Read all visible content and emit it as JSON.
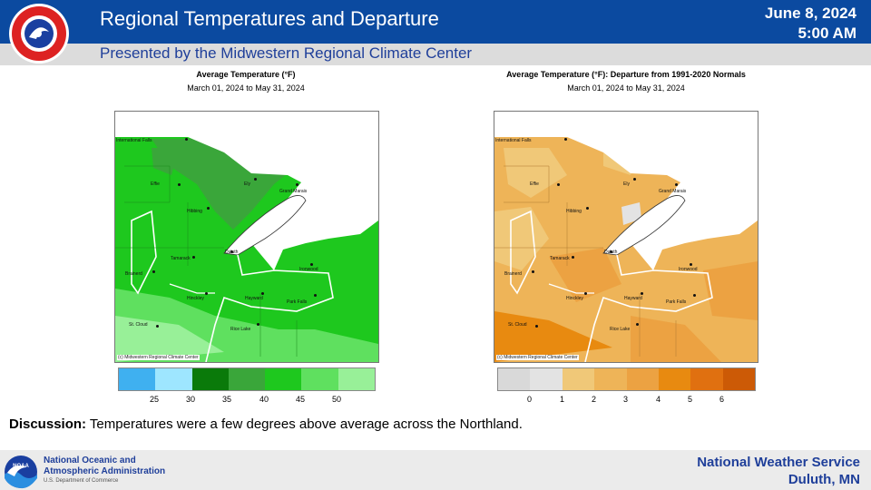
{
  "header": {
    "title": "Regional Temperatures and Departure",
    "date": "June 8, 2024",
    "time": "5:00 AM",
    "subtitle": "Presented by the Midwestern Regional Climate Center",
    "logo_text": "NATIONAL WEATHER SERVICE"
  },
  "maps": [
    {
      "title": "Average Temperature (°F)",
      "subtitle": "March 01, 2024 to May 31, 2024",
      "credit": "(c) Midwestern Regional Climate Center",
      "legend_colors": [
        "#3fb0f0",
        "#9ee6ff",
        "#0a7a0a",
        "#3aa63a",
        "#1ec81e",
        "#5fe05f",
        "#98f098"
      ],
      "legend_ticks": [
        "25",
        "30",
        "35",
        "40",
        "45",
        "50"
      ]
    },
    {
      "title": "Average Temperature (°F): Departure from 1991-2020 Normals",
      "subtitle": "March 01, 2024 to May 31, 2024",
      "credit": "(c) Midwestern Regional Climate Center",
      "legend_colors": [
        "#d9d9d9",
        "#e3e3e3",
        "#f0c878",
        "#eeb458",
        "#eca242",
        "#e88a10",
        "#e07010",
        "#cc5a06"
      ],
      "legend_ticks": [
        "0",
        "1",
        "2",
        "3",
        "4",
        "5",
        "6"
      ]
    }
  ],
  "cities": [
    "International Falls",
    "Effie",
    "Ely",
    "Grand Marais",
    "Hibbing",
    "Duluth",
    "Tamarack",
    "Ironwood",
    "Brainerd",
    "Hinckley",
    "Hayward",
    "Park Falls",
    "St. Cloud",
    "Rice Lake"
  ],
  "discussion": {
    "label": "Discussion:",
    "text": " Temperatures were a few degrees above average across the Northland."
  },
  "footer": {
    "noaa_line1": "National Oceanic and",
    "noaa_line2": "Atmospheric Administration",
    "noaa_sub": "U.S. Department of Commerce",
    "noaa_logo_text": "NOAA",
    "nws_line1": "National  Weather  Service",
    "nws_line2": "Duluth,  MN"
  }
}
